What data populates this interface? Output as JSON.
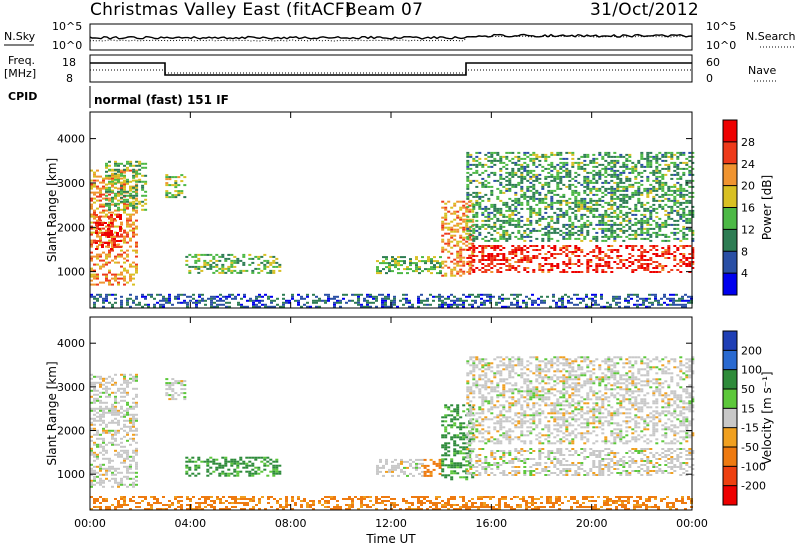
{
  "header": {
    "station": "Christmas Valley East (fitACF)",
    "beam": "Beam 07",
    "date": "31/Oct/2012"
  },
  "summary": {
    "nsky_label": "N.Sky",
    "nsky_ticks": [
      "10^5",
      "10^0"
    ],
    "nsearch_label": "N.Search",
    "nsearch_ticks": [
      "10^5",
      "10^0"
    ],
    "freq_label": [
      "Freq.",
      "[MHz]"
    ],
    "freq_ticks": [
      "18",
      "8"
    ],
    "nave_label": "Nave",
    "nave_ticks": [
      "60",
      "0"
    ],
    "cpid_label": "CPID",
    "cpid_value": "normal (fast) 151 IF"
  },
  "chart_data": [
    {
      "type": "heatmap",
      "title": "",
      "xlabel": "Time UT",
      "ylabel": "Slant Range [km]",
      "x_ticks": [
        "00:00",
        "04:00",
        "08:00",
        "12:00",
        "16:00",
        "20:00",
        "00:00"
      ],
      "x_hours": [
        0,
        4,
        8,
        12,
        16,
        20,
        24
      ],
      "xlim": [
        0,
        24
      ],
      "y_ticks": [
        1000,
        2000,
        3000,
        4000
      ],
      "ylim": [
        180,
        4600
      ],
      "colorbar": {
        "label": "Power [dB]",
        "ticks": [
          4,
          8,
          12,
          16,
          20,
          24,
          28
        ],
        "range": [
          0,
          32
        ],
        "colors": [
          "#0000ee",
          "#2a4fa5",
          "#2e7d54",
          "#4cb845",
          "#d8c023",
          "#f09430",
          "#ee3a1a",
          "#ee0000"
        ]
      },
      "regions": [
        {
          "t": [
            0.0,
            1.8
          ],
          "r": [
            700,
            3300
          ],
          "level": 22
        },
        {
          "t": [
            0.2,
            1.2
          ],
          "r": [
            1500,
            2300
          ],
          "level": 28
        },
        {
          "t": [
            0.6,
            2.2
          ],
          "r": [
            2400,
            3500
          ],
          "level": 14
        },
        {
          "t": [
            3.0,
            3.8
          ],
          "r": [
            2700,
            3200
          ],
          "level": 16
        },
        {
          "t": [
            3.8,
            7.6
          ],
          "r": [
            950,
            1400
          ],
          "level": 14
        },
        {
          "t": [
            11.4,
            14.0
          ],
          "r": [
            950,
            1350
          ],
          "level": 14
        },
        {
          "t": [
            14.0,
            15.2
          ],
          "r": [
            900,
            2600
          ],
          "level": 22
        },
        {
          "t": [
            15.0,
            24.0
          ],
          "r": [
            1000,
            1600
          ],
          "level": 28
        },
        {
          "t": [
            15.0,
            24.0
          ],
          "r": [
            1700,
            3700
          ],
          "level": 12
        },
        {
          "t": [
            0.0,
            24.0
          ],
          "r": [
            200,
            500
          ],
          "level": 7
        }
      ]
    },
    {
      "type": "heatmap",
      "title": "",
      "xlabel": "Time UT",
      "ylabel": "Slant Range [km]",
      "x_ticks": [
        "00:00",
        "04:00",
        "08:00",
        "12:00",
        "16:00",
        "20:00",
        "00:00"
      ],
      "x_hours": [
        0,
        4,
        8,
        12,
        16,
        20,
        24
      ],
      "xlim": [
        0,
        24
      ],
      "y_ticks": [
        1000,
        2000,
        3000,
        4000
      ],
      "ylim": [
        180,
        4600
      ],
      "colorbar": {
        "label": "Velocity [m s⁻¹]",
        "ticks": [
          "200",
          "100",
          "50",
          "15",
          "-15",
          "-50",
          "-100",
          "-200"
        ],
        "colors": [
          "#1f3fb5",
          "#2a6ad0",
          "#2e8b3a",
          "#5cc83a",
          "#c8c8c8",
          "#f0a020",
          "#ee7a10",
          "#ee4010",
          "#ee0000"
        ]
      },
      "regions": [
        {
          "t": [
            0.0,
            1.8
          ],
          "r": [
            700,
            3300
          ],
          "value": 0
        },
        {
          "t": [
            3.0,
            3.8
          ],
          "r": [
            2700,
            3200
          ],
          "value": 0
        },
        {
          "t": [
            3.8,
            7.6
          ],
          "r": [
            950,
            1400
          ],
          "value": 60
        },
        {
          "t": [
            11.4,
            13.3
          ],
          "r": [
            950,
            1350
          ],
          "value": 0
        },
        {
          "t": [
            13.3,
            14.0
          ],
          "r": [
            950,
            1350
          ],
          "value": -60
        },
        {
          "t": [
            14.0,
            15.2
          ],
          "r": [
            900,
            2600
          ],
          "value": 60
        },
        {
          "t": [
            15.0,
            24.0
          ],
          "r": [
            1000,
            1600
          ],
          "value": 0
        },
        {
          "t": [
            15.0,
            24.0
          ],
          "r": [
            1700,
            3700
          ],
          "value": 0
        },
        {
          "t": [
            0.0,
            24.0
          ],
          "r": [
            200,
            500
          ],
          "value": -60
        }
      ]
    }
  ]
}
